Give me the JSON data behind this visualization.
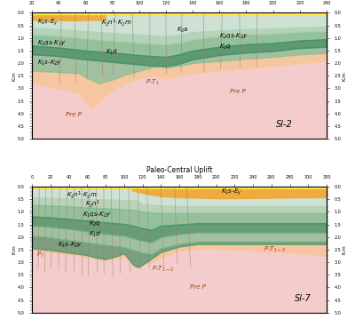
{
  "fig_width": 4.0,
  "fig_height": 3.59,
  "dpi": 100,
  "colors": {
    "yellow": "#FFE84D",
    "orange_top": "#F0A830",
    "pale_orange": "#F8C898",
    "pink_bg": "#F2C0C0",
    "pale_pink": "#F8D8D8",
    "light_mint": "#C8E8D8",
    "pale_green": "#A8D8B8",
    "medium_green": "#78C090",
    "dark_green": "#3A9060",
    "deep_teal": "#2A7858",
    "fault_color": "#A08060"
  },
  "panel1": {
    "label": "Sl-2",
    "title": "Paleo-Central Uplift",
    "xlim": [
      20,
      240
    ],
    "ylim": [
      5.0,
      0.0
    ],
    "ytick_major": [
      0.0,
      0.5,
      1.0,
      1.5,
      2.0,
      2.5,
      3.0,
      3.5,
      4.0,
      4.5,
      5.0
    ],
    "xticks": [
      20,
      40,
      60,
      80,
      100,
      120,
      140,
      160,
      180,
      200,
      220,
      240
    ]
  },
  "panel2": {
    "label": "Sl-7",
    "title": "Paleo-Central Uplift",
    "xlim": [
      0,
      320
    ],
    "ylim": [
      5.0,
      0.0
    ],
    "ytick_major": [
      0.0,
      0.5,
      1.0,
      1.5,
      2.0,
      2.5,
      3.0,
      3.5,
      4.0,
      4.5,
      5.0
    ],
    "xticks": [
      0,
      20,
      40,
      60,
      80,
      100,
      120,
      140,
      160,
      180,
      200,
      220,
      240,
      260,
      280,
      300,
      320
    ]
  }
}
